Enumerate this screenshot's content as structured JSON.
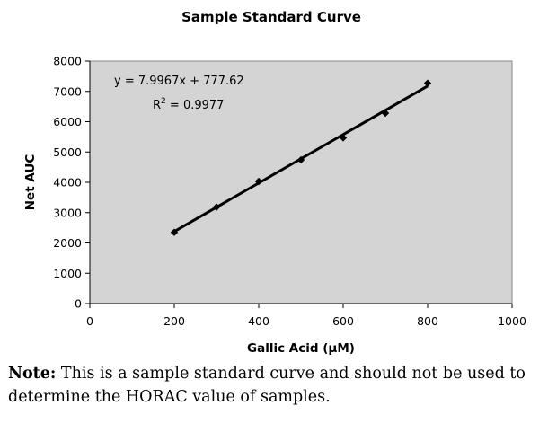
{
  "chart_data": {
    "type": "scatter",
    "title": "Sample Standard Curve",
    "xlabel": "Gallic Acid (μM)",
    "ylabel": "Net AUC",
    "xlim": [
      0,
      1000
    ],
    "ylim": [
      0,
      8000
    ],
    "x_ticks": [
      "0",
      "200",
      "400",
      "600",
      "800",
      "1000"
    ],
    "y_ticks": [
      "0",
      "1000",
      "2000",
      "3000",
      "4000",
      "5000",
      "6000",
      "7000",
      "8000"
    ],
    "series": [
      {
        "x": [
          200,
          300,
          400,
          500,
          600,
          700,
          800
        ],
        "y": [
          2350,
          3180,
          4030,
          4740,
          5470,
          6280,
          7270
        ]
      }
    ],
    "trendline": {
      "slope": 7.9967,
      "intercept": 777.62,
      "x_range": [
        200,
        800
      ]
    },
    "equation": "y = 7.9967x + 777.62",
    "r_squared_label": "R",
    "r_squared_exp": "2",
    "r_squared_value": " = 0.9977",
    "grid": false,
    "plot_background": "#d4d4d4",
    "marker_color": "#000000",
    "line_color": "#000000"
  },
  "note": {
    "label": "Note:",
    "text": " This is a sample standard curve and should not be used to determine the HORAC value of samples."
  }
}
